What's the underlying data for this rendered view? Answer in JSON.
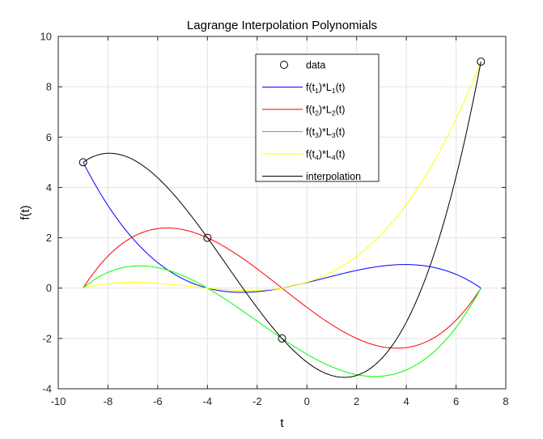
{
  "chart_data": {
    "type": "line",
    "title": "Lagrange Interpolation Polynomials",
    "xlabel": "t",
    "ylabel": "f(t)",
    "xlim": [
      -10,
      8
    ],
    "ylim": [
      -4,
      10
    ],
    "xticks": [
      -10,
      -8,
      -6,
      -4,
      -2,
      0,
      2,
      4,
      6,
      8
    ],
    "yticks": [
      -4,
      -2,
      0,
      2,
      4,
      6,
      8,
      10
    ],
    "grid": true,
    "legend_position": "top-right",
    "data_points": {
      "name": "data",
      "marker": "circle",
      "t": [
        -9,
        -4,
        -1,
        7
      ],
      "f": [
        5,
        2,
        -2,
        9
      ]
    },
    "series": [
      {
        "name": "f(t1)*L1(t)",
        "legend": {
          "pre": "f(t",
          "sub1": "1",
          "mid": ")*L",
          "sub2": "1",
          "post": "(t)"
        },
        "color": "#0000ff",
        "node_index": 0
      },
      {
        "name": "f(t2)*L2(t)",
        "legend": {
          "pre": "f(t",
          "sub1": "2",
          "mid": ")*L",
          "sub2": "2",
          "post": "(t)"
        },
        "color": "#ff0000",
        "node_index": 1
      },
      {
        "name": "f(t3)*L3(t)",
        "legend": {
          "pre": "f(t",
          "sub1": "3",
          "mid": ")*L",
          "sub2": "3",
          "post": "(t)"
        },
        "color": "#00ff00",
        "node_index": 2
      },
      {
        "name": "f(t4)*L4(t)",
        "legend": {
          "pre": "f(t",
          "sub1": "4",
          "mid": ")*L",
          "sub2": "4",
          "post": "(t)"
        },
        "color": "#ffff00",
        "node_index": 3
      },
      {
        "name": "interpolation",
        "legend": {
          "pre": "interpolation",
          "sub1": "",
          "mid": "",
          "sub2": "",
          "post": ""
        },
        "color": "#000000",
        "node_index": -1
      }
    ],
    "data_label": "data"
  }
}
